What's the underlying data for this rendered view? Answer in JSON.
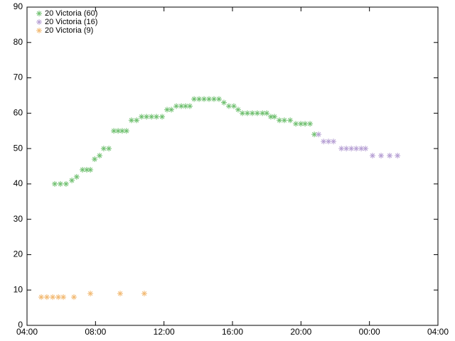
{
  "chart_data": {
    "type": "scatter",
    "marker": "asterisk",
    "xlim": [
      4,
      28
    ],
    "xticks": [
      {
        "value": 4,
        "label": "04:00"
      },
      {
        "value": 8,
        "label": "08:00"
      },
      {
        "value": 12,
        "label": "12:00"
      },
      {
        "value": 16,
        "label": "16:00"
      },
      {
        "value": 20,
        "label": "20:00"
      },
      {
        "value": 24,
        "label": "00:00"
      },
      {
        "value": 28,
        "label": "04:00"
      }
    ],
    "ylim": [
      0,
      90
    ],
    "yticks": [
      0,
      10,
      20,
      30,
      40,
      50,
      60,
      70,
      80,
      90
    ],
    "legend": "top-left",
    "series": [
      {
        "name": "20 Victoria (60)",
        "color": "#6ebf6e",
        "x": [
          5.62,
          5.95,
          6.28,
          6.62,
          6.9,
          7.24,
          7.49,
          7.7,
          7.95,
          8.24,
          8.48,
          8.78,
          9.07,
          9.32,
          9.56,
          9.81,
          10.1,
          10.4,
          10.69,
          10.98,
          11.27,
          11.56,
          11.89,
          12.18,
          12.43,
          12.72,
          13.01,
          13.26,
          13.51,
          13.76,
          14.05,
          14.34,
          14.63,
          14.92,
          15.21,
          15.5,
          15.79,
          16.08,
          16.33,
          16.58,
          16.87,
          17.16,
          17.45,
          17.75,
          18.0,
          18.24,
          18.45,
          18.74,
          19.03,
          19.37,
          19.7,
          19.99,
          20.24,
          20.53,
          20.78
        ],
        "values": [
          40,
          40,
          40,
          41,
          42,
          44,
          44,
          44,
          47,
          48,
          50,
          50,
          55,
          55,
          55,
          55,
          58,
          58,
          59,
          59,
          59,
          59,
          59,
          61,
          61,
          62,
          62,
          62,
          62,
          64,
          64,
          64,
          64,
          64,
          64,
          63,
          62,
          62,
          61,
          60,
          60,
          60,
          60,
          60,
          60,
          59,
          59,
          58,
          58,
          58,
          57,
          57,
          57,
          57,
          54
        ]
      },
      {
        "name": "20 Victoria (16)",
        "color": "#b59ed3",
        "x": [
          21.03,
          21.32,
          21.61,
          21.9,
          22.36,
          22.65,
          22.94,
          23.23,
          23.52,
          23.77,
          24.18,
          24.68,
          25.18,
          25.64
        ],
        "values": [
          54,
          52,
          52,
          52,
          50,
          50,
          50,
          50,
          50,
          50,
          48,
          48,
          48,
          48
        ]
      },
      {
        "name": "20 Victoria (9)",
        "color": "#f2b870",
        "x": [
          4.83,
          5.16,
          5.5,
          5.83,
          6.12,
          6.74,
          7.7,
          9.44,
          10.85
        ],
        "values": [
          8,
          8,
          8,
          8,
          8,
          8,
          9,
          9,
          9
        ]
      }
    ]
  }
}
